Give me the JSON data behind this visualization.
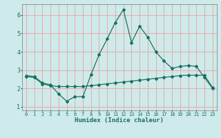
{
  "xlabel": "Humidex (Indice chaleur)",
  "ylabel": "",
  "background_color": "#ceeaea",
  "grid_color": "#e8aaaa",
  "line_color": "#1a7060",
  "xlim": [
    -0.5,
    23.5
  ],
  "ylim": [
    0.8,
    6.6
  ],
  "yticks": [
    1,
    2,
    3,
    4,
    5,
    6
  ],
  "xticks": [
    0,
    1,
    2,
    3,
    4,
    5,
    6,
    7,
    8,
    9,
    10,
    11,
    12,
    13,
    14,
    15,
    16,
    17,
    18,
    19,
    20,
    21,
    22,
    23
  ],
  "series1_x": [
    0,
    1,
    2,
    3,
    4,
    5,
    6,
    7,
    8,
    9,
    10,
    11,
    12,
    13,
    14,
    15,
    16,
    17,
    18,
    19,
    20,
    21,
    22,
    23
  ],
  "series1_y": [
    2.7,
    2.65,
    2.3,
    2.2,
    1.7,
    1.3,
    1.55,
    1.55,
    2.75,
    3.85,
    4.7,
    5.6,
    6.3,
    4.5,
    5.4,
    4.8,
    4.0,
    3.5,
    3.1,
    3.2,
    3.25,
    3.2,
    2.6,
    2.0
  ],
  "series2_x": [
    0,
    1,
    2,
    3,
    4,
    5,
    6,
    7,
    8,
    9,
    10,
    11,
    12,
    13,
    14,
    15,
    16,
    17,
    18,
    19,
    20,
    21,
    22,
    23
  ],
  "series2_y": [
    2.65,
    2.6,
    2.25,
    2.15,
    2.1,
    2.1,
    2.1,
    2.1,
    2.15,
    2.2,
    2.25,
    2.3,
    2.35,
    2.4,
    2.45,
    2.5,
    2.55,
    2.6,
    2.65,
    2.7,
    2.72,
    2.72,
    2.72,
    2.05
  ]
}
